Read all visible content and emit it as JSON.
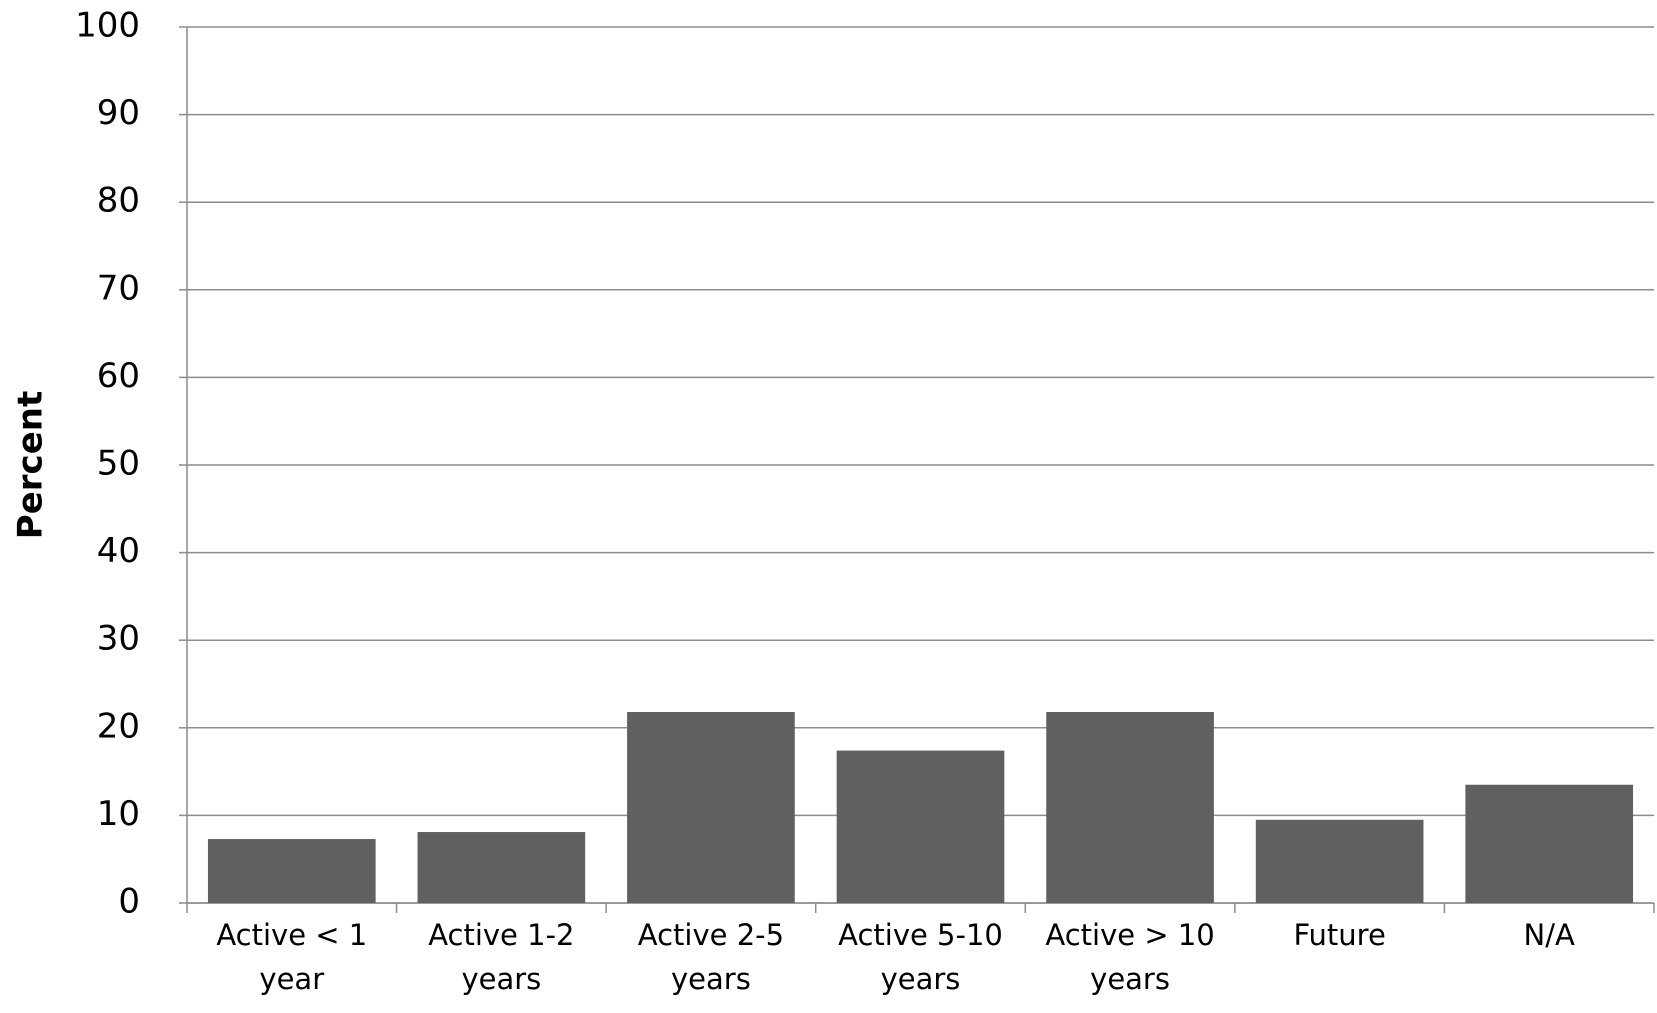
{
  "chart_data": {
    "type": "bar",
    "y_label": "Percent",
    "categories": [
      "Active < 1 year",
      "Active 1-2 years",
      "Active 2-5 years",
      "Active 5-10 years",
      "Active > 10 years",
      "Future",
      "N/A"
    ],
    "values": [
      7.3,
      8.1,
      21.8,
      17.4,
      21.8,
      9.5,
      13.5
    ],
    "color": "#606060",
    "ylim": [
      0,
      100
    ],
    "yticks": [
      0,
      10,
      20,
      30,
      40,
      50,
      60,
      70,
      80,
      90,
      100
    ],
    "grid": true
  }
}
